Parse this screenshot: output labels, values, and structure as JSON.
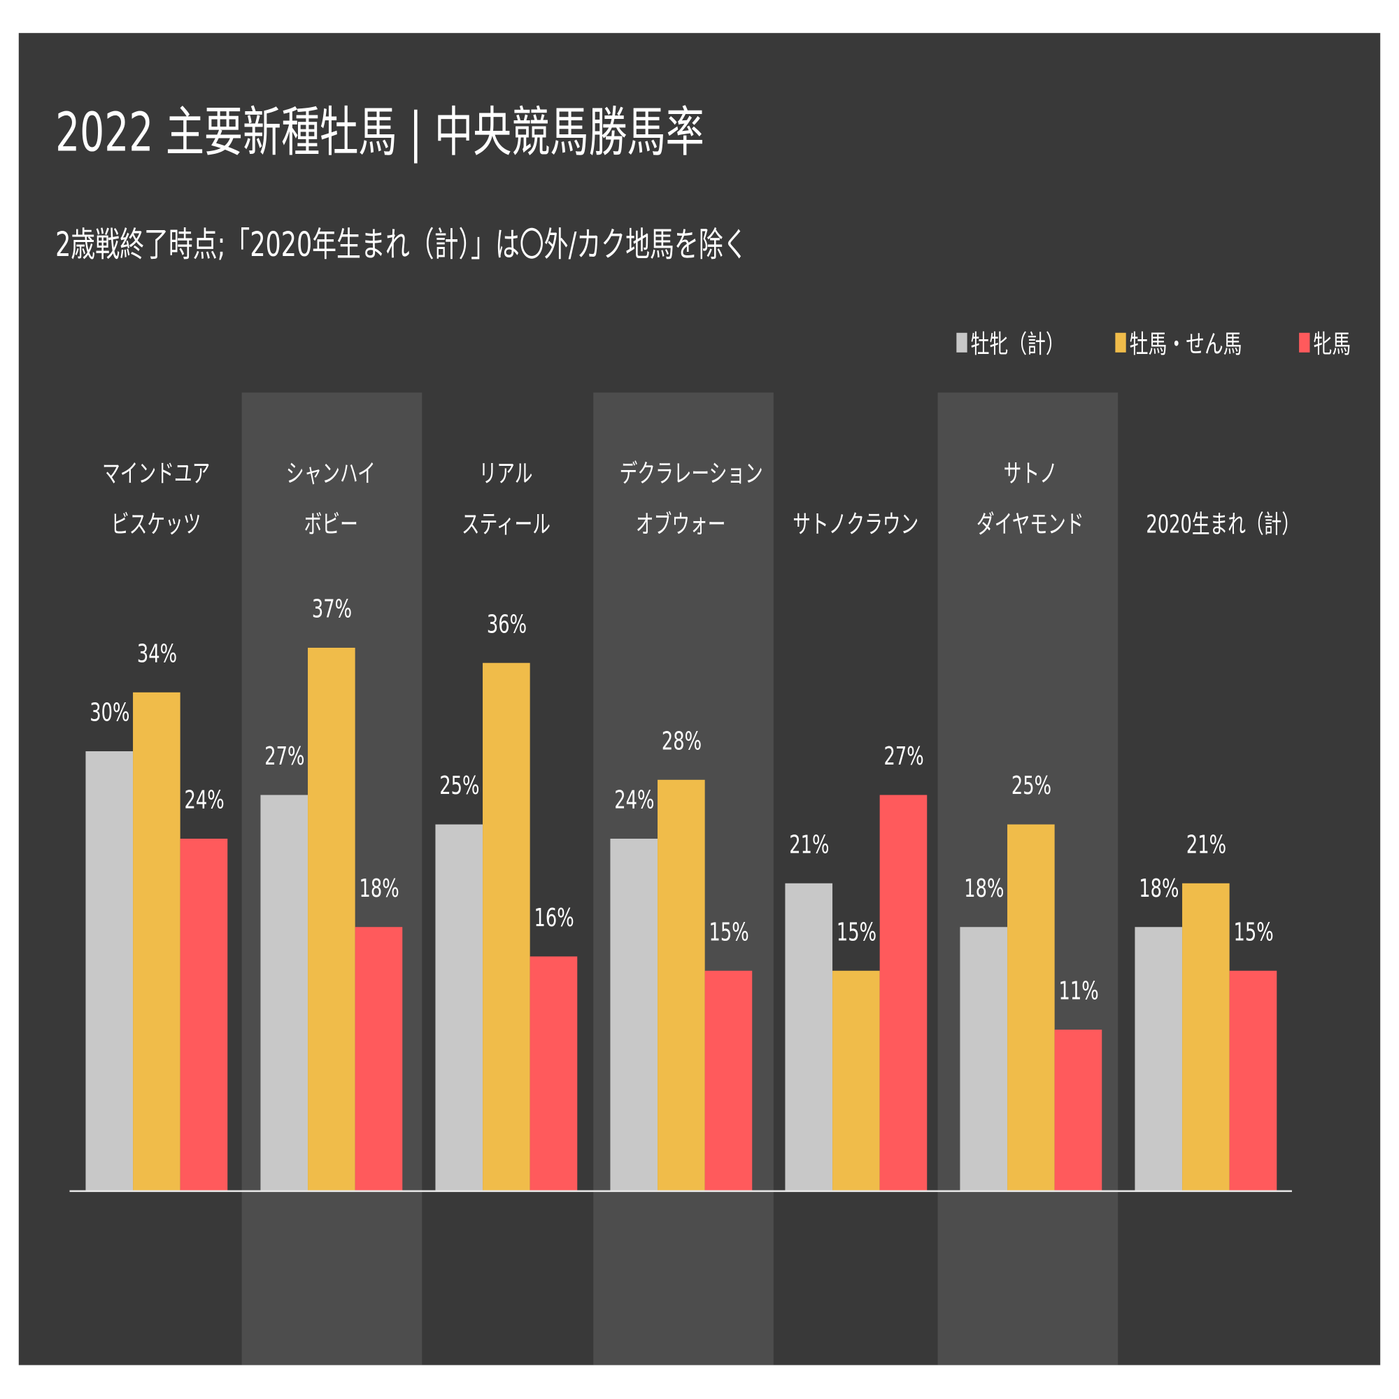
{
  "chart_data": {
    "type": "bar",
    "title": "2022 主要新種牡馬 | 中央競馬勝馬率",
    "subtitle": "2歳戦終了時点;「2020年生まれ（計）」は〇外/カク地馬を除く",
    "categories": [
      [
        "マインドユア",
        "ビスケッツ"
      ],
      [
        "シャンハイ",
        "ボビー"
      ],
      [
        "リアル",
        "スティール"
      ],
      [
        "デクラレーション",
        "オブウォー"
      ],
      [
        "",
        "サトノクラウン"
      ],
      [
        "サトノ",
        "ダイヤモンド"
      ],
      [
        "",
        "2020生まれ（計）"
      ]
    ],
    "series": [
      {
        "name": "牡牝（計）",
        "color": "#c8c8c8",
        "values": [
          30,
          27,
          25,
          24,
          21,
          18,
          18
        ]
      },
      {
        "name": "牡馬・せん馬",
        "color": "#f0bc4a",
        "values": [
          34,
          37,
          36,
          28,
          15,
          25,
          21
        ]
      },
      {
        "name": "牝馬",
        "color": "#ff5a5c",
        "values": [
          24,
          18,
          16,
          15,
          27,
          11,
          15
        ]
      }
    ],
    "value_format": "%",
    "legend_position": "top-right",
    "grid": false,
    "ylim": [
      0,
      40
    ],
    "background": "#393939",
    "band_color": "#4d4d4d"
  }
}
